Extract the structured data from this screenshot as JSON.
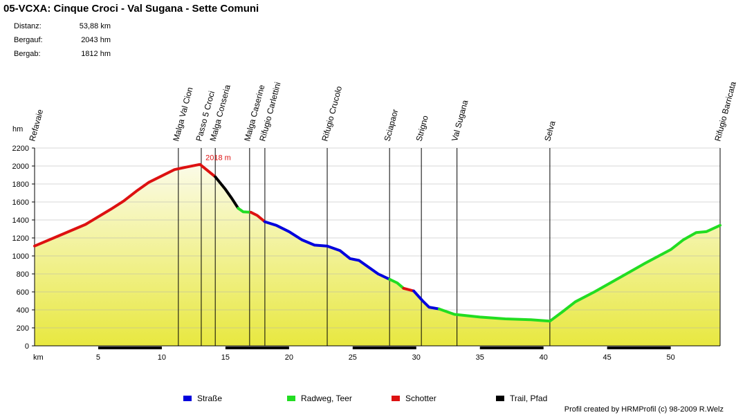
{
  "title": "05-VCXA: Cinque Croci - Val Sugana - Sette Comuni",
  "stats": [
    {
      "label": "Distanz:",
      "value": "53,88 km"
    },
    {
      "label": "Bergauf:",
      "value": "2043 hm"
    },
    {
      "label": "Bergab:",
      "value": "1812 hm"
    }
  ],
  "credit": "Profil created by HRMProfil (c) 98-2009 R.Welz",
  "chart_data": {
    "type": "area",
    "ylabel": "hm",
    "xlabel": "km",
    "xlim": [
      0,
      53.88
    ],
    "ylim": [
      0,
      2200
    ],
    "yticks": [
      0,
      200,
      400,
      600,
      800,
      1000,
      1200,
      1400,
      1600,
      1800,
      2000,
      2200
    ],
    "xticks": [
      5,
      10,
      15,
      20,
      25,
      30,
      35,
      40,
      45,
      50
    ],
    "max_label": {
      "x": 13.0,
      "y": 2018,
      "text": "2018 m"
    },
    "waypoints": [
      {
        "name": "Refavaie",
        "km": 0.0
      },
      {
        "name": "Malga Val Cion",
        "km": 11.3
      },
      {
        "name": "Passo 5 Croci",
        "km": 13.1
      },
      {
        "name": "Malga Conseria",
        "km": 14.2
      },
      {
        "name": "Malga Caserine",
        "km": 16.9
      },
      {
        "name": "Rifugio Carlettini",
        "km": 18.1
      },
      {
        "name": "Rifugio Crucolo",
        "km": 23.0
      },
      {
        "name": "Sciapaor",
        "km": 27.9
      },
      {
        "name": "Strigno",
        "km": 30.4
      },
      {
        "name": "Val Sugana",
        "km": 33.2
      },
      {
        "name": "Selva",
        "km": 40.5
      },
      {
        "name": "Rifugio Barricata",
        "km": 53.88
      }
    ],
    "legend": [
      {
        "name": "Straße",
        "color": "#0000dd"
      },
      {
        "name": "Radweg, Teer",
        "color": "#22dd22"
      },
      {
        "name": "Schotter",
        "color": "#dd1111"
      },
      {
        "name": "Trail, Pfad",
        "color": "#000000"
      }
    ],
    "series": [
      {
        "name": "Schotter",
        "surface": "Schotter",
        "x": [
          0,
          2,
          4,
          6,
          7,
          8,
          9,
          10,
          11,
          12,
          13.0,
          14.2
        ],
        "y": [
          1110,
          1230,
          1350,
          1520,
          1610,
          1720,
          1820,
          1890,
          1960,
          1990,
          2018,
          1880
        ]
      },
      {
        "name": "Trail, Pfad",
        "surface": "Trail, Pfad",
        "x": [
          14.2,
          15.0,
          15.5,
          16.0
        ],
        "y": [
          1880,
          1740,
          1640,
          1530
        ]
      },
      {
        "name": "Radweg, Teer",
        "surface": "Radweg, Teer",
        "x": [
          16.0,
          16.4,
          17.0
        ],
        "y": [
          1530,
          1490,
          1485
        ]
      },
      {
        "name": "Schotter",
        "surface": "Schotter",
        "x": [
          17.0,
          17.5,
          18.1
        ],
        "y": [
          1485,
          1450,
          1380
        ]
      },
      {
        "name": "Straße",
        "surface": "Straße",
        "x": [
          18.1,
          19.0,
          20.0,
          21.0,
          22.0,
          23.0,
          24.0,
          24.8,
          25.5,
          26.0,
          27.0,
          27.9
        ],
        "y": [
          1380,
          1340,
          1270,
          1180,
          1120,
          1110,
          1060,
          970,
          950,
          900,
          800,
          740
        ]
      },
      {
        "name": "Radweg, Teer",
        "surface": "Radweg, Teer",
        "x": [
          27.9,
          28.5,
          29.0
        ],
        "y": [
          740,
          700,
          640
        ]
      },
      {
        "name": "Schotter",
        "surface": "Schotter",
        "x": [
          29.0,
          29.8
        ],
        "y": [
          640,
          610
        ]
      },
      {
        "name": "Straße",
        "surface": "Straße",
        "x": [
          29.8,
          30.5,
          31.0,
          31.8
        ],
        "y": [
          610,
          500,
          430,
          410
        ]
      },
      {
        "name": "Radweg, Teer",
        "surface": "Radweg, Teer",
        "x": [
          31.8,
          33.0,
          35.0,
          37.0,
          39.0,
          40.5,
          41.5,
          42.5,
          44.0,
          46.0,
          48.0,
          50.0,
          51.0,
          52.0,
          52.8,
          53.88
        ],
        "y": [
          410,
          350,
          320,
          300,
          290,
          275,
          380,
          490,
          600,
          760,
          920,
          1070,
          1180,
          1260,
          1270,
          1340
        ]
      }
    ]
  }
}
